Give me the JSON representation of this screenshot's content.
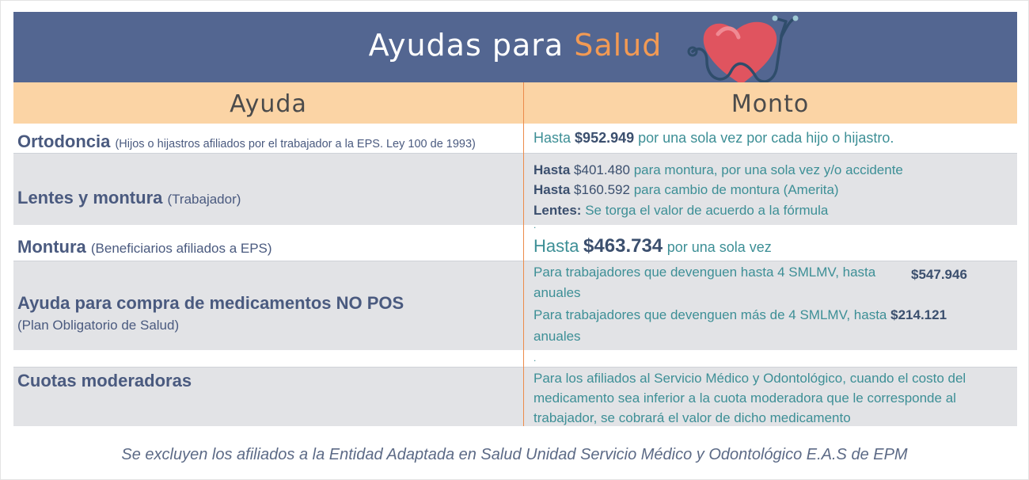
{
  "header": {
    "title_main": "Ayudas para",
    "title_accent": "Salud",
    "col_ayuda": "Ayuda",
    "col_monto": "Monto"
  },
  "rows": [
    {
      "name": "Ortodoncia",
      "note": "(Hijos o hijastros afiliados por el trabajador a la EPS. Ley 100 de 1993)",
      "amount_prefix": "Hasta",
      "amount_value": "$952.949",
      "amount_suffix": "por una sola vez por cada hijo o hijastro."
    },
    {
      "name": "Lentes y montura",
      "note": "(Trabajador)",
      "lines": [
        {
          "bold": "Hasta",
          "value": "$401.480",
          "text": "para montura, por una sola vez y/o accidente"
        },
        {
          "bold": "Hasta",
          "value": "$160.592",
          "text": "para cambio de montura (Amerita)"
        },
        {
          "bold": "Lentes:",
          "value": "",
          "text": "Se torga el valor de acuerdo a la fórmula"
        }
      ]
    },
    {
      "name": "Montura",
      "note": "(Beneficiarios afiliados a EPS)",
      "amount_prefix": "Hasta",
      "amount_value": "$463.734",
      "amount_suffix": "por una sola vez"
    },
    {
      "name": "Ayuda para compra de medicamentos NO POS",
      "sub": "(Plan Obligatorio de Salud)",
      "lines": [
        {
          "text": "Para trabajadores que devenguen hasta 4 SMLMV, hasta",
          "value": "$547.946",
          "text2": "anuales"
        },
        {
          "text": "Para trabajadores que devenguen más de 4 SMLMV, hasta",
          "value": "$214.121",
          "text2": "anuales"
        }
      ]
    },
    {
      "name": "Cuotas moderadoras",
      "paragraph": "Para los afiliados al Servicio Médico y Odontológico, cuando el costo del medicamento sea inferior a la cuota moderadora que le corresponde al trabajador, se cobrará el valor de dicho medicamento"
    }
  ],
  "dot_mark": ".",
  "footer": "Se excluyen los afiliados a la Entidad Adaptada en Salud Unidad Servicio Médico y Odontológico E.A.S de EPM",
  "colors": {
    "title_bar": "#536691",
    "accent": "#f29a54",
    "header_row": "#fbd4a5",
    "gray_row": "#e2e3e6",
    "teal_text": "#3d8f96",
    "navy_text": "#4a5a7f"
  },
  "icons": [
    "heart-stethoscope-icon"
  ]
}
